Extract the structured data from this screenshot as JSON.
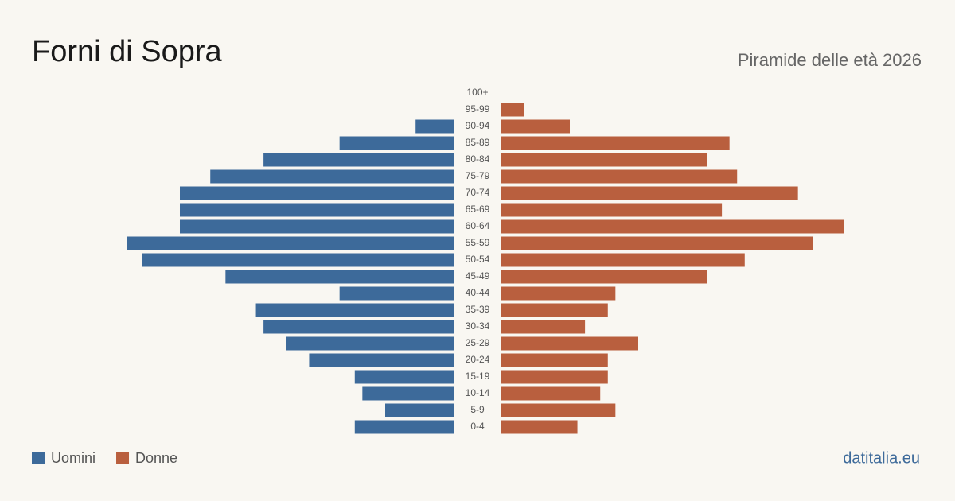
{
  "chart_data": {
    "type": "pyramid",
    "title": "Forni di Sopra",
    "subtitle": "Piramide delle età 2026",
    "source": "datitalia.eu",
    "categories": [
      "100+",
      "95-99",
      "90-94",
      "85-89",
      "80-84",
      "75-79",
      "70-74",
      "65-69",
      "60-64",
      "55-59",
      "50-54",
      "45-49",
      "40-44",
      "35-39",
      "30-34",
      "25-29",
      "20-24",
      "15-19",
      "10-14",
      "5-9",
      "0-4"
    ],
    "series": [
      {
        "name": "Uomini",
        "color": "#3d6a9a",
        "values": [
          0,
          0,
          5,
          15,
          25,
          32,
          36,
          36,
          36,
          43,
          41,
          30,
          15,
          26,
          25,
          22,
          19,
          13,
          12,
          9,
          13
        ]
      },
      {
        "name": "Donne",
        "color": "#b95f3e",
        "values": [
          0,
          3,
          9,
          30,
          27,
          31,
          39,
          29,
          45,
          41,
          32,
          27,
          15,
          14,
          11,
          18,
          14,
          14,
          13,
          15,
          10
        ]
      }
    ]
  }
}
